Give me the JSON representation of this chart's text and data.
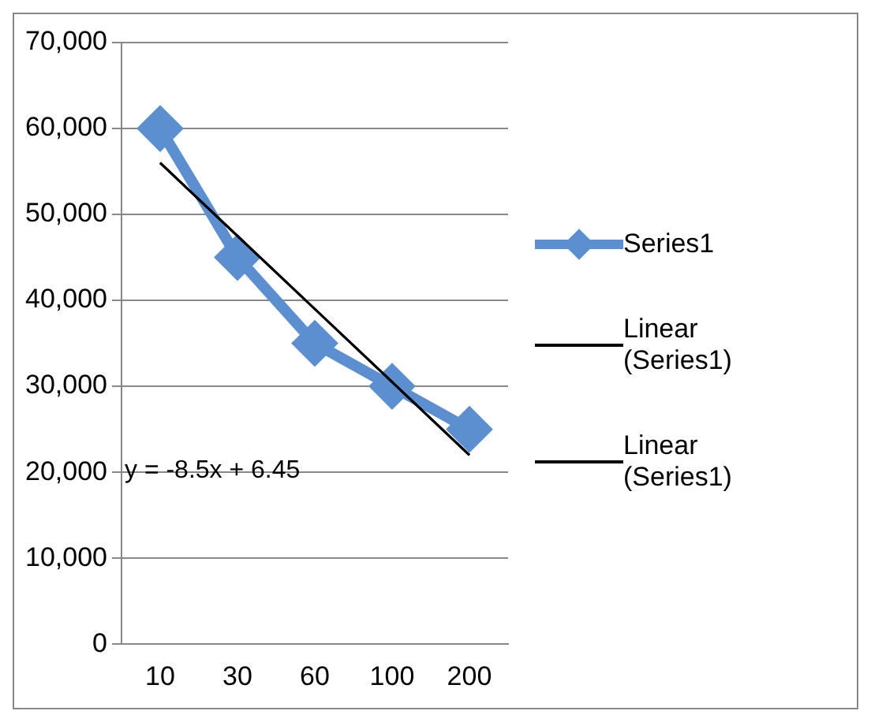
{
  "chart_data": {
    "type": "line",
    "categories": [
      "10",
      "30",
      "60",
      "100",
      "200"
    ],
    "series": [
      {
        "name": "Series1",
        "color": "#5b8fcf",
        "values": [
          60000,
          45000,
          35000,
          30000,
          25000
        ]
      },
      {
        "name": "Linear (Series1)",
        "color": "#000000",
        "values": [
          56000,
          47500,
          39000,
          30500,
          22000
        ],
        "marker": "none"
      },
      {
        "name": "Linear (Series1)",
        "color": "#000000",
        "values": [
          56000,
          47500,
          39000,
          30500,
          22000
        ],
        "marker": "none"
      }
    ],
    "ylim": [
      0,
      70000
    ],
    "yticks": [
      {
        "value": 0,
        "label": "0"
      },
      {
        "value": 10000,
        "label": "10,000"
      },
      {
        "value": 20000,
        "label": "20,000"
      },
      {
        "value": 30000,
        "label": "30,000"
      },
      {
        "value": 40000,
        "label": "40,000"
      },
      {
        "value": 50000,
        "label": "50,000"
      },
      {
        "value": 60000,
        "label": "60,000"
      },
      {
        "value": 70000,
        "label": "70,000"
      }
    ],
    "grid": "y",
    "legend": "right",
    "marker": "diamond",
    "line_style": "solid",
    "annotations": [
      "y = -8.5x + 6.45"
    ]
  }
}
